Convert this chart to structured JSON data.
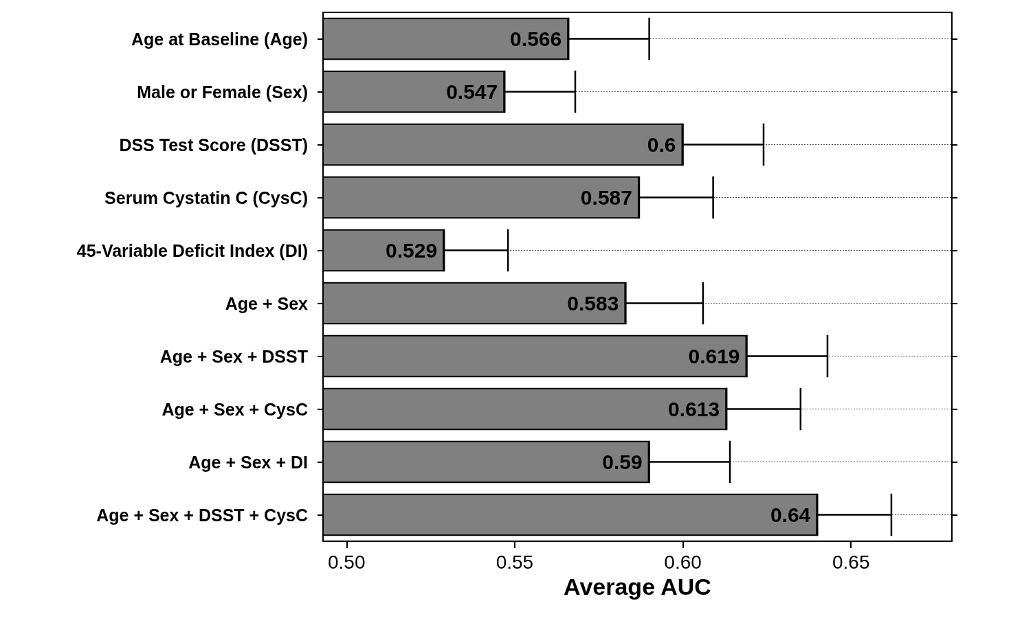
{
  "chart_data": {
    "type": "bar",
    "orientation": "horizontal",
    "xlabel": "Average AUC",
    "categories": [
      "Age at Baseline (Age)",
      "Male or Female (Sex)",
      "DSS Test Score (DSST)",
      "Serum Cystatin C (CysC)",
      "45-Variable Deficit Index (DI)",
      "Age + Sex",
      "Age + Sex + DSST",
      "Age + Sex + CysC",
      "Age + Sex + DI",
      "Age + Sex + DSST + CysC"
    ],
    "values": [
      0.566,
      0.547,
      0.6,
      0.587,
      0.529,
      0.583,
      0.619,
      0.613,
      0.59,
      0.64
    ],
    "errors": [
      [
        0.566,
        0.59
      ],
      [
        0.547,
        0.568
      ],
      [
        0.6,
        0.624
      ],
      [
        0.587,
        0.609
      ],
      [
        0.529,
        0.548
      ],
      [
        0.583,
        0.606
      ],
      [
        0.619,
        0.643
      ],
      [
        0.613,
        0.635
      ],
      [
        0.59,
        0.614
      ],
      [
        0.64,
        0.662
      ]
    ],
    "color": "#808080",
    "xlim": [
      0.493,
      0.68
    ],
    "xticks": [
      {
        "value": 0.5,
        "label": "0.50"
      },
      {
        "value": 0.55,
        "label": "0.55"
      },
      {
        "value": 0.6,
        "label": "0.60"
      },
      {
        "value": 0.65,
        "label": "0.65"
      }
    ],
    "grid": "y",
    "data_labels": true
  }
}
